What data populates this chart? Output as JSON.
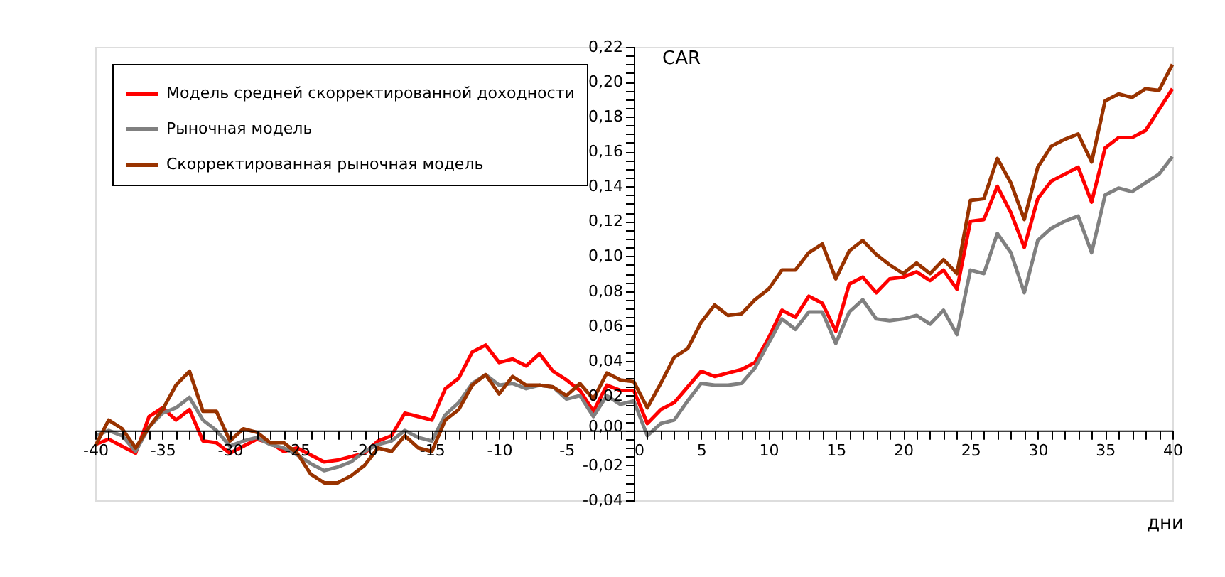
{
  "chart_data": {
    "type": "line",
    "ylabel": "CAR",
    "xlabel": "дни",
    "x": [
      -40,
      -39,
      -38,
      -37,
      -36,
      -35,
      -34,
      -33,
      -32,
      -31,
      -30,
      -29,
      -28,
      -27,
      -26,
      -25,
      -24,
      -23,
      -22,
      -21,
      -20,
      -19,
      -18,
      -17,
      -16,
      -15,
      -14,
      -13,
      -12,
      -11,
      -10,
      -9,
      -8,
      -7,
      -6,
      -5,
      -4,
      -3,
      -2,
      -1,
      0,
      1,
      2,
      3,
      4,
      5,
      6,
      7,
      8,
      9,
      10,
      11,
      12,
      13,
      14,
      15,
      16,
      17,
      18,
      19,
      20,
      21,
      22,
      23,
      24,
      25,
      26,
      27,
      28,
      29,
      30,
      31,
      32,
      33,
      34,
      35,
      36,
      37,
      38,
      39,
      40
    ],
    "series": [
      {
        "name": "Модель средней скорректированной доходности",
        "color": "#ff0000",
        "values": [
          -0.008,
          -0.005,
          -0.009,
          -0.013,
          0.008,
          0.013,
          0.006,
          0.012,
          -0.006,
          -0.007,
          -0.013,
          -0.009,
          -0.005,
          -0.007,
          -0.012,
          -0.01,
          -0.014,
          -0.018,
          -0.017,
          -0.015,
          -0.013,
          -0.006,
          -0.003,
          0.01,
          0.008,
          0.006,
          0.024,
          0.03,
          0.045,
          0.049,
          0.039,
          0.041,
          0.037,
          0.044,
          0.034,
          0.029,
          0.023,
          0.011,
          0.026,
          0.023,
          0.023,
          0.004,
          0.012,
          0.016,
          0.025,
          0.034,
          0.031,
          0.033,
          0.035,
          0.039,
          0.053,
          0.069,
          0.065,
          0.077,
          0.073,
          0.057,
          0.084,
          0.088,
          0.079,
          0.087,
          0.088,
          0.091,
          0.086,
          0.092,
          0.081,
          0.12,
          0.121,
          0.14,
          0.125,
          0.105,
          0.133,
          0.143,
          0.147,
          0.151,
          0.131,
          0.162,
          0.168,
          0.168,
          0.172,
          0.184,
          0.196
        ]
      },
      {
        "name": "Рыночная модель",
        "color": "#808080",
        "values": [
          -0.003,
          0.0,
          -0.003,
          -0.012,
          0.002,
          0.01,
          0.013,
          0.019,
          0.006,
          0.0,
          -0.009,
          -0.006,
          -0.004,
          -0.008,
          -0.01,
          -0.014,
          -0.019,
          -0.023,
          -0.021,
          -0.018,
          -0.012,
          -0.008,
          -0.006,
          0.0,
          -0.004,
          -0.006,
          0.009,
          0.016,
          0.027,
          0.032,
          0.026,
          0.027,
          0.024,
          0.026,
          0.025,
          0.018,
          0.02,
          0.008,
          0.02,
          0.015,
          0.017,
          -0.003,
          0.004,
          0.006,
          0.017,
          0.027,
          0.026,
          0.026,
          0.027,
          0.036,
          0.05,
          0.064,
          0.058,
          0.068,
          0.068,
          0.05,
          0.068,
          0.075,
          0.064,
          0.063,
          0.064,
          0.066,
          0.061,
          0.069,
          0.055,
          0.092,
          0.09,
          0.113,
          0.102,
          0.079,
          0.109,
          0.116,
          0.12,
          0.123,
          0.102,
          0.135,
          0.139,
          0.137,
          0.142,
          0.147,
          0.157
        ]
      },
      {
        "name": "Скорректированная рыночная модель",
        "color": "#993300",
        "values": [
          -0.009,
          0.006,
          0.001,
          -0.01,
          0.002,
          0.012,
          0.026,
          0.034,
          0.011,
          0.011,
          -0.006,
          0.001,
          -0.001,
          -0.007,
          -0.007,
          -0.013,
          -0.025,
          -0.03,
          -0.03,
          -0.026,
          -0.02,
          -0.01,
          -0.012,
          -0.003,
          -0.01,
          -0.012,
          0.006,
          0.012,
          0.026,
          0.032,
          0.021,
          0.031,
          0.026,
          0.026,
          0.025,
          0.02,
          0.027,
          0.018,
          0.033,
          0.029,
          0.028,
          0.013,
          0.027,
          0.042,
          0.047,
          0.062,
          0.072,
          0.066,
          0.067,
          0.075,
          0.081,
          0.092,
          0.092,
          0.102,
          0.107,
          0.087,
          0.103,
          0.109,
          0.101,
          0.095,
          0.09,
          0.096,
          0.09,
          0.098,
          0.09,
          0.132,
          0.133,
          0.156,
          0.142,
          0.121,
          0.151,
          0.163,
          0.167,
          0.17,
          0.154,
          0.189,
          0.193,
          0.191,
          0.196,
          0.195,
          0.21
        ]
      }
    ],
    "xlim": [
      -40,
      40
    ],
    "xticks": [
      -40,
      {
        "value": -39,
        "label": null
      },
      {
        "value": -38,
        "label": null
      },
      {
        "value": -37,
        "label": null
      },
      {
        "value": -36,
        "label": null
      },
      -35,
      {
        "value": -34,
        "label": null
      },
      {
        "value": -33,
        "label": null
      },
      {
        "value": -32,
        "label": null
      },
      {
        "value": -31,
        "label": null
      },
      -30,
      {
        "value": -29,
        "label": null
      },
      {
        "value": -28,
        "label": null
      },
      {
        "value": -27,
        "label": null
      },
      {
        "value": -26,
        "label": null
      },
      -25,
      {
        "value": -24,
        "label": null
      },
      {
        "value": -23,
        "label": null
      },
      {
        "value": -22,
        "label": null
      },
      {
        "value": -21,
        "label": null
      },
      -20,
      {
        "value": -19,
        "label": null
      },
      {
        "value": -18,
        "label": null
      },
      {
        "value": -17,
        "label": null
      },
      {
        "value": -16,
        "label": null
      },
      -15,
      {
        "value": -14,
        "label": null
      },
      {
        "value": -13,
        "label": null
      },
      {
        "value": -12,
        "label": null
      },
      {
        "value": -11,
        "label": null
      },
      -10,
      {
        "value": -9,
        "label": null
      },
      {
        "value": -8,
        "label": null
      },
      {
        "value": -7,
        "label": null
      },
      {
        "value": -6,
        "label": null
      },
      -5,
      {
        "value": -4,
        "label": null
      },
      {
        "value": -3,
        "label": null
      },
      {
        "value": -2,
        "label": null
      },
      {
        "value": -1,
        "label": null
      },
      0,
      {
        "value": 1,
        "label": null
      },
      {
        "value": 2,
        "label": null
      },
      {
        "value": 3,
        "label": null
      },
      {
        "value": 4,
        "label": null
      },
      5,
      {
        "value": 6,
        "label": null
      },
      {
        "value": 7,
        "label": null
      },
      {
        "value": 8,
        "label": null
      },
      {
        "value": 9,
        "label": null
      },
      10,
      {
        "value": 11,
        "label": null
      },
      {
        "value": 12,
        "label": null
      },
      {
        "value": 13,
        "label": null
      },
      {
        "value": 14,
        "label": null
      },
      15,
      {
        "value": 16,
        "label": null
      },
      {
        "value": 17,
        "label": null
      },
      {
        "value": 18,
        "label": null
      },
      {
        "value": 19,
        "label": null
      },
      20,
      {
        "value": 21,
        "label": null
      },
      {
        "value": 22,
        "label": null
      },
      {
        "value": 23,
        "label": null
      },
      {
        "value": 24,
        "label": null
      },
      25,
      {
        "value": 26,
        "label": null
      },
      {
        "value": 27,
        "label": null
      },
      {
        "value": 28,
        "label": null
      },
      {
        "value": 29,
        "label": null
      },
      30,
      {
        "value": 31,
        "label": null
      },
      {
        "value": 32,
        "label": null
      },
      {
        "value": 33,
        "label": null
      },
      {
        "value": 34,
        "label": null
      },
      35,
      {
        "value": 36,
        "label": null
      },
      {
        "value": 37,
        "label": null
      },
      {
        "value": 38,
        "label": null
      },
      {
        "value": 39,
        "label": null
      },
      40
    ],
    "ylim": [
      -0.04,
      0.22
    ],
    "yticks": [
      {
        "value": -0.04,
        "label": "-0,04"
      },
      {
        "value": -0.035,
        "label": null
      },
      {
        "value": -0.03,
        "label": null
      },
      {
        "value": -0.025,
        "label": null
      },
      {
        "value": -0.02,
        "label": "-0,02"
      },
      {
        "value": -0.015,
        "label": null
      },
      {
        "value": -0.01,
        "label": null
      },
      {
        "value": -0.005,
        "label": null
      },
      {
        "value": 0,
        "label": "0,00"
      },
      {
        "value": 0.005,
        "label": null
      },
      {
        "value": 0.01,
        "label": null
      },
      {
        "value": 0.015,
        "label": null
      },
      {
        "value": 0.02,
        "label": "0,02"
      },
      {
        "value": 0.025,
        "label": null
      },
      {
        "value": 0.03,
        "label": null
      },
      {
        "value": 0.035,
        "label": null
      },
      {
        "value": 0.04,
        "label": "0,04"
      },
      {
        "value": 0.045,
        "label": null
      },
      {
        "value": 0.05,
        "label": null
      },
      {
        "value": 0.055,
        "label": null
      },
      {
        "value": 0.06,
        "label": "0,06"
      },
      {
        "value": 0.065,
        "label": null
      },
      {
        "value": 0.07,
        "label": null
      },
      {
        "value": 0.075,
        "label": null
      },
      {
        "value": 0.08,
        "label": "0,08"
      },
      {
        "value": 0.085,
        "label": null
      },
      {
        "value": 0.09,
        "label": null
      },
      {
        "value": 0.095,
        "label": null
      },
      {
        "value": 0.1,
        "label": "0,10"
      },
      {
        "value": 0.105,
        "label": null
      },
      {
        "value": 0.11,
        "label": null
      },
      {
        "value": 0.115,
        "label": null
      },
      {
        "value": 0.12,
        "label": "0,12"
      },
      {
        "value": 0.125,
        "label": null
      },
      {
        "value": 0.13,
        "label": null
      },
      {
        "value": 0.135,
        "label": null
      },
      {
        "value": 0.14,
        "label": "0,14"
      },
      {
        "value": 0.145,
        "label": null
      },
      {
        "value": 0.15,
        "label": null
      },
      {
        "value": 0.155,
        "label": null
      },
      {
        "value": 0.16,
        "label": "0,16"
      },
      {
        "value": 0.165,
        "label": null
      },
      {
        "value": 0.17,
        "label": null
      },
      {
        "value": 0.175,
        "label": null
      },
      {
        "value": 0.18,
        "label": "0,18"
      },
      {
        "value": 0.185,
        "label": null
      },
      {
        "value": 0.19,
        "label": null
      },
      {
        "value": 0.195,
        "label": null
      },
      {
        "value": 0.2,
        "label": "0,20"
      },
      {
        "value": 0.205,
        "label": null
      },
      {
        "value": 0.21,
        "label": null
      },
      {
        "value": 0.215,
        "label": null
      },
      {
        "value": 0.22,
        "label": "0,22"
      }
    ],
    "grid": false,
    "legend": "top left",
    "marker": "none",
    "line_style": "solid"
  }
}
